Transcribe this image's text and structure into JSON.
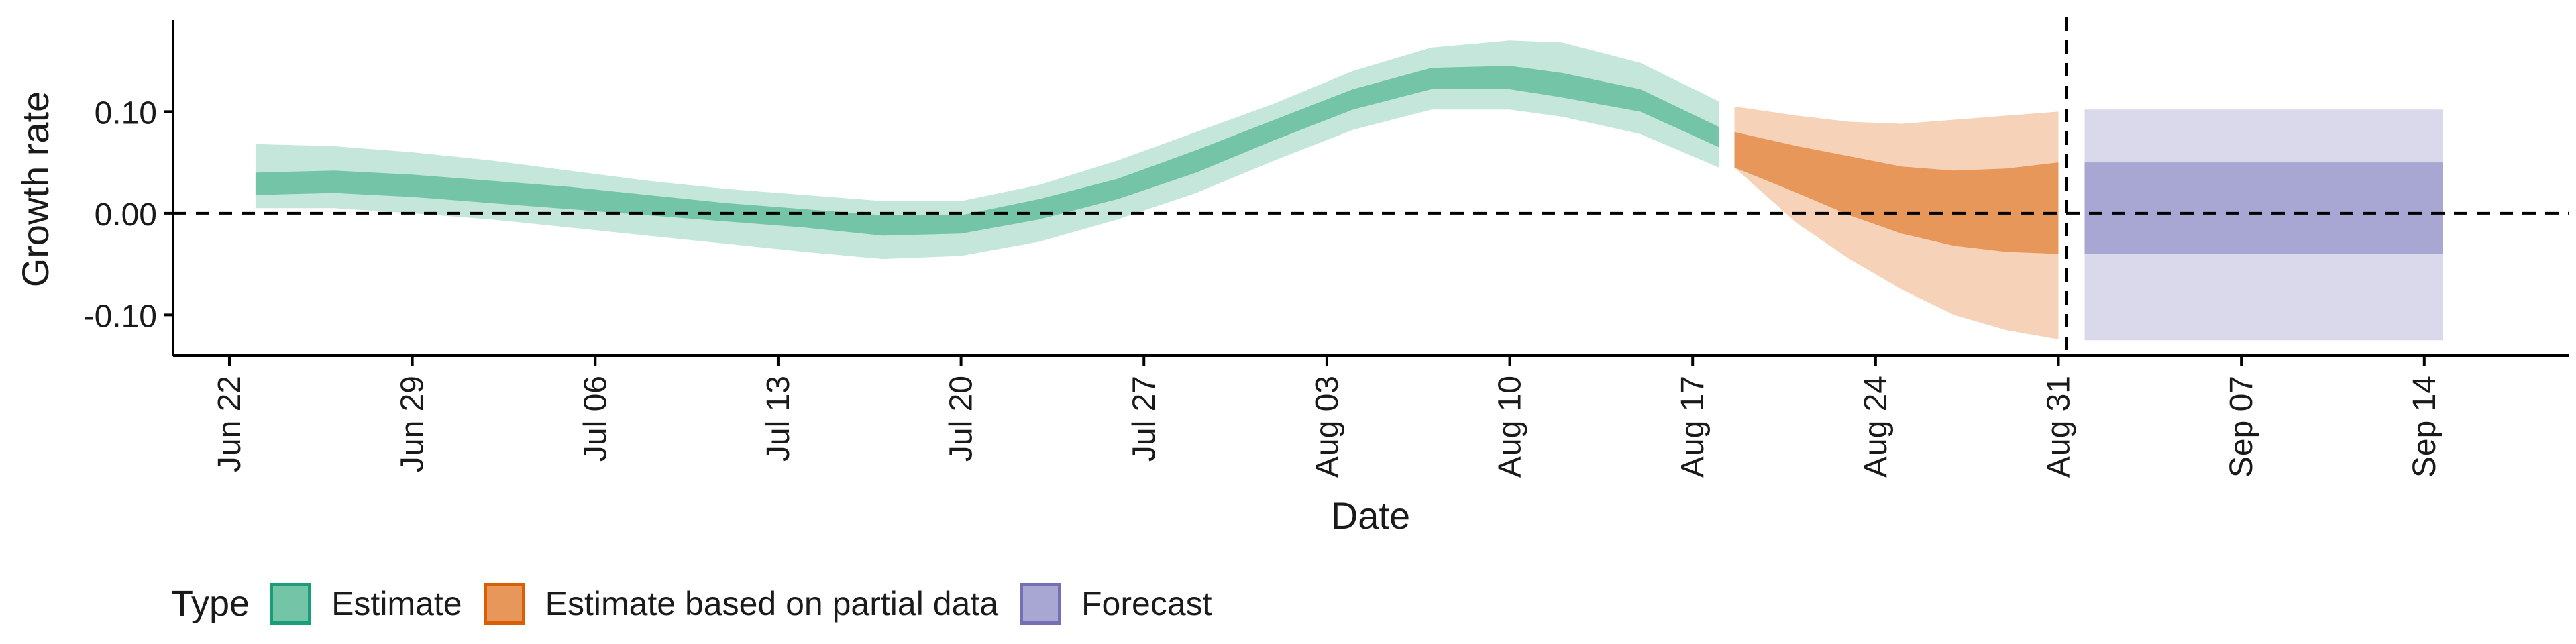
{
  "chart_data": {
    "type": "area",
    "xlabel": "Date",
    "ylabel": "Growth rate",
    "x_ticks": [
      "Jun 22",
      "Jun 29",
      "Jul 06",
      "Jul 13",
      "Jul 20",
      "Jul 27",
      "Aug 03",
      "Aug 10",
      "Aug 17",
      "Aug 24",
      "Aug 31",
      "Sep 07",
      "Sep 14"
    ],
    "y_ticks": [
      {
        "value": 0.1,
        "label": "0.10"
      },
      {
        "value": 0.0,
        "label": "0.00"
      },
      {
        "value": -0.1,
        "label": "-0.10"
      }
    ],
    "ylim": [
      -0.14,
      0.19
    ],
    "xlim_days": [
      -2.5,
      64.5
    ],
    "x_origin": "2020-06-22",
    "hline_y": 0.0,
    "vline_date": "Sep 01",
    "legend": {
      "title": "Type",
      "position": "bottom",
      "entries": [
        {
          "label": "Estimate",
          "fill": "#74c4a7",
          "border": "#1b9e77"
        },
        {
          "label": "Estimate based on partial data",
          "fill": "#e8975a",
          "border": "#d95f02"
        },
        {
          "label": "Forecast",
          "fill": "#a8a6d2",
          "border": "#7570b3"
        }
      ]
    },
    "series": [
      {
        "name": "Estimate",
        "inner_color": "#74c4a7",
        "outer_color": "#c4e6db",
        "points": [
          {
            "x": 1,
            "lo90": 0.005,
            "lo50": 0.018,
            "hi50": 0.04,
            "hi90": 0.068
          },
          {
            "x": 4,
            "lo90": 0.005,
            "lo50": 0.02,
            "hi50": 0.042,
            "hi90": 0.066
          },
          {
            "x": 7,
            "lo90": 0.0,
            "lo50": 0.016,
            "hi50": 0.038,
            "hi90": 0.06
          },
          {
            "x": 10,
            "lo90": -0.006,
            "lo50": 0.01,
            "hi50": 0.032,
            "hi90": 0.052
          },
          {
            "x": 13,
            "lo90": -0.014,
            "lo50": 0.004,
            "hi50": 0.026,
            "hi90": 0.042
          },
          {
            "x": 16,
            "lo90": -0.022,
            "lo50": -0.002,
            "hi50": 0.018,
            "hi90": 0.032
          },
          {
            "x": 19,
            "lo90": -0.03,
            "lo50": -0.008,
            "hi50": 0.01,
            "hi90": 0.024
          },
          {
            "x": 22,
            "lo90": -0.038,
            "lo50": -0.014,
            "hi50": 0.004,
            "hi90": 0.018
          },
          {
            "x": 25,
            "lo90": -0.045,
            "lo50": -0.022,
            "hi50": -0.002,
            "hi90": 0.012
          },
          {
            "x": 28,
            "lo90": -0.042,
            "lo50": -0.02,
            "hi50": -0.002,
            "hi90": 0.012
          },
          {
            "x": 31,
            "lo90": -0.028,
            "lo50": -0.006,
            "hi50": 0.014,
            "hi90": 0.028
          },
          {
            "x": 34,
            "lo90": -0.006,
            "lo50": 0.014,
            "hi50": 0.034,
            "hi90": 0.052
          },
          {
            "x": 37,
            "lo90": 0.02,
            "lo50": 0.04,
            "hi50": 0.062,
            "hi90": 0.08
          },
          {
            "x": 40,
            "lo90": 0.052,
            "lo50": 0.072,
            "hi50": 0.092,
            "hi90": 0.108
          },
          {
            "x": 43,
            "lo90": 0.082,
            "lo50": 0.102,
            "hi50": 0.122,
            "hi90": 0.14
          },
          {
            "x": 46,
            "lo90": 0.102,
            "lo50": 0.122,
            "hi50": 0.143,
            "hi90": 0.163
          },
          {
            "x": 49,
            "lo90": 0.102,
            "lo50": 0.122,
            "hi50": 0.145,
            "hi90": 0.17
          },
          {
            "x": 51,
            "lo90": 0.095,
            "lo50": 0.114,
            "hi50": 0.138,
            "hi90": 0.168
          },
          {
            "x": 54,
            "lo90": 0.078,
            "lo50": 0.1,
            "hi50": 0.122,
            "hi90": 0.148
          },
          {
            "x": 57,
            "lo90": 0.045,
            "lo50": 0.065,
            "hi50": 0.085,
            "hi90": 0.11
          }
        ]
      },
      {
        "name": "Estimate based on partial data",
        "inner_color": "#e8975a",
        "outer_color": "#f6d3b8",
        "points": [
          {
            "x": 57.6,
            "lo90": 0.045,
            "lo50": 0.045,
            "hi50": 0.08,
            "hi90": 0.105
          },
          {
            "x": 60,
            "lo90": -0.01,
            "lo50": 0.02,
            "hi50": 0.066,
            "hi90": 0.096
          },
          {
            "x": 62,
            "lo90": -0.045,
            "lo50": -0.002,
            "hi50": 0.056,
            "hi90": 0.09
          },
          {
            "x": 64,
            "lo90": -0.075,
            "lo50": -0.02,
            "hi50": 0.046,
            "hi90": 0.088
          },
          {
            "x": 66,
            "lo90": -0.1,
            "lo50": -0.032,
            "hi50": 0.042,
            "hi90": 0.092
          },
          {
            "x": 68,
            "lo90": -0.115,
            "lo50": -0.038,
            "hi50": 0.044,
            "hi90": 0.096
          },
          {
            "x": 70,
            "lo90": -0.124,
            "lo50": -0.04,
            "hi50": 0.05,
            "hi90": 0.1
          }
        ]
      },
      {
        "name": "Forecast",
        "inner_color": "#a8a6d2",
        "outer_color": "#dad9ec",
        "points": [
          {
            "x": 71,
            "lo90": -0.125,
            "lo50": -0.04,
            "hi50": 0.05,
            "hi90": 0.102
          },
          {
            "x": 84.7,
            "lo90": -0.125,
            "lo50": -0.04,
            "hi50": 0.05,
            "hi90": 0.102
          }
        ]
      }
    ]
  }
}
